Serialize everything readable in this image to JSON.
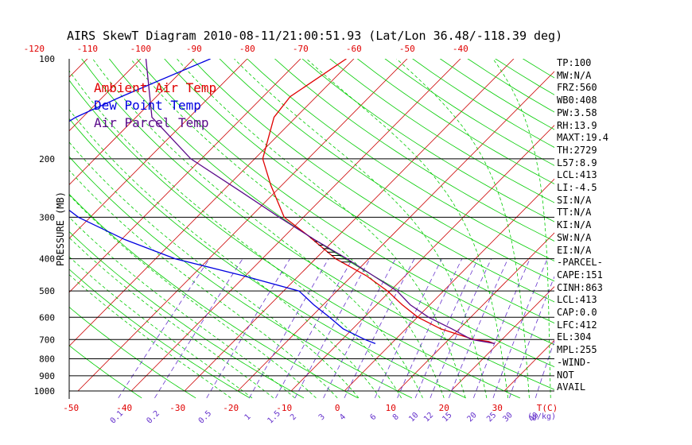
{
  "header": {
    "title": "AIRS SkewT Diagram 2010-08-11/21:00:51.93 (Lat/Lon 36.48/-118.39 deg)"
  },
  "legend": {
    "ambient": "Ambient Air Temp",
    "dewpoint": "Dew Point Temp",
    "parcel": "Air Parcel Temp"
  },
  "indices": [
    "TP:100",
    "MW:N/A",
    "FRZ:560",
    "WB0:408",
    "PW:3.58",
    "RH:13.9",
    "MAXT:19.4",
    "TH:2729",
    "L57:8.9",
    "LCL:413",
    "LI:-4.5",
    "SI:N/A",
    "TT:N/A",
    "KI:N/A",
    "SW:N/A",
    "EI:N/A",
    "-PARCEL-",
    "CAPE:151",
    "CINH:863",
    "LCL:413",
    "CAP:0.0",
    "LFC:412",
    "EL:304",
    "MPL:255",
    "-WIND-",
    "NOT",
    "AVAIL"
  ],
  "colors": {
    "ambient": "#e00000",
    "dewpoint": "#0000e0",
    "parcel": "#5a0a8a",
    "dry_adiabat": "#00cc00",
    "moist_adiabat": "#00cc00",
    "mixing_ratio": "#6633cc",
    "isotherm": "#cc0000",
    "isobar": "#000000"
  },
  "chart_data": {
    "type": "line",
    "title": "AIRS SkewT Diagram 2010-08-11/21:00:51.93 (Lat/Lon 36.48/-118.39 deg)",
    "ylabel": "PRESSURE (MB)",
    "xlabel": "T(C)",
    "ylim": [
      1000,
      100
    ],
    "yscale": "log",
    "pressure_ticks": [
      100,
      200,
      300,
      400,
      500,
      600,
      700,
      800,
      900,
      1000
    ],
    "temp_ticks_bottom": [
      -50,
      -40,
      -30,
      -20,
      -10,
      0,
      10,
      20,
      30
    ],
    "temp_ticks_top": [
      -120,
      -110,
      -100,
      -90,
      -80,
      -70,
      -60,
      -50,
      -40
    ],
    "mixing_ratio_ticks": [
      "0.1",
      "0.2",
      "0.5",
      "1",
      "1.5",
      "2",
      "3",
      "4",
      "6",
      "8",
      "10",
      "12",
      "15",
      "20",
      "25",
      "30",
      "40"
    ],
    "mixing_ratio_unit": "(g/kg)",
    "grid": true,
    "legend_position": "top-left",
    "series": [
      {
        "name": "Ambient Air Temp",
        "points": [
          [
            100,
            -61.4
          ],
          [
            130,
            -64.9
          ],
          [
            150,
            -64.1
          ],
          [
            200,
            -58.5
          ],
          [
            240,
            -52.1
          ],
          [
            300,
            -43.6
          ],
          [
            340,
            -35.8
          ],
          [
            400,
            -26.2
          ],
          [
            450,
            -17.3
          ],
          [
            500,
            -10.5
          ],
          [
            550,
            -5.2
          ],
          [
            600,
            0.1
          ],
          [
            650,
            6.5
          ],
          [
            700,
            14.7
          ],
          [
            710,
            17.9
          ],
          [
            720,
            19.3
          ]
        ]
      },
      {
        "name": "Dew Point Temp",
        "points": [
          [
            100,
            -86.9
          ],
          [
            130,
            -96.6
          ],
          [
            150,
            -101.3
          ],
          [
            200,
            -106.3
          ],
          [
            240,
            -96.1
          ],
          [
            300,
            -82.2
          ],
          [
            350,
            -69.4
          ],
          [
            400,
            -56.3
          ],
          [
            450,
            -40.4
          ],
          [
            500,
            -27.1
          ],
          [
            550,
            -21.8
          ],
          [
            600,
            -16.5
          ],
          [
            650,
            -11.8
          ],
          [
            700,
            -5.7
          ],
          [
            720,
            -3.0
          ]
        ]
      },
      {
        "name": "Air Parcel Temp",
        "points": [
          [
            100,
            -99.0
          ],
          [
            150,
            -87.0
          ],
          [
            200,
            -72.0
          ],
          [
            250,
            -56.8
          ],
          [
            300,
            -44.5
          ],
          [
            350,
            -33.8
          ],
          [
            400,
            -24.1
          ],
          [
            450,
            -16.0
          ],
          [
            500,
            -8.7
          ],
          [
            550,
            -3.7
          ],
          [
            600,
            2.1
          ],
          [
            650,
            8.6
          ],
          [
            700,
            14.3
          ],
          [
            720,
            19.4
          ]
        ]
      }
    ]
  }
}
